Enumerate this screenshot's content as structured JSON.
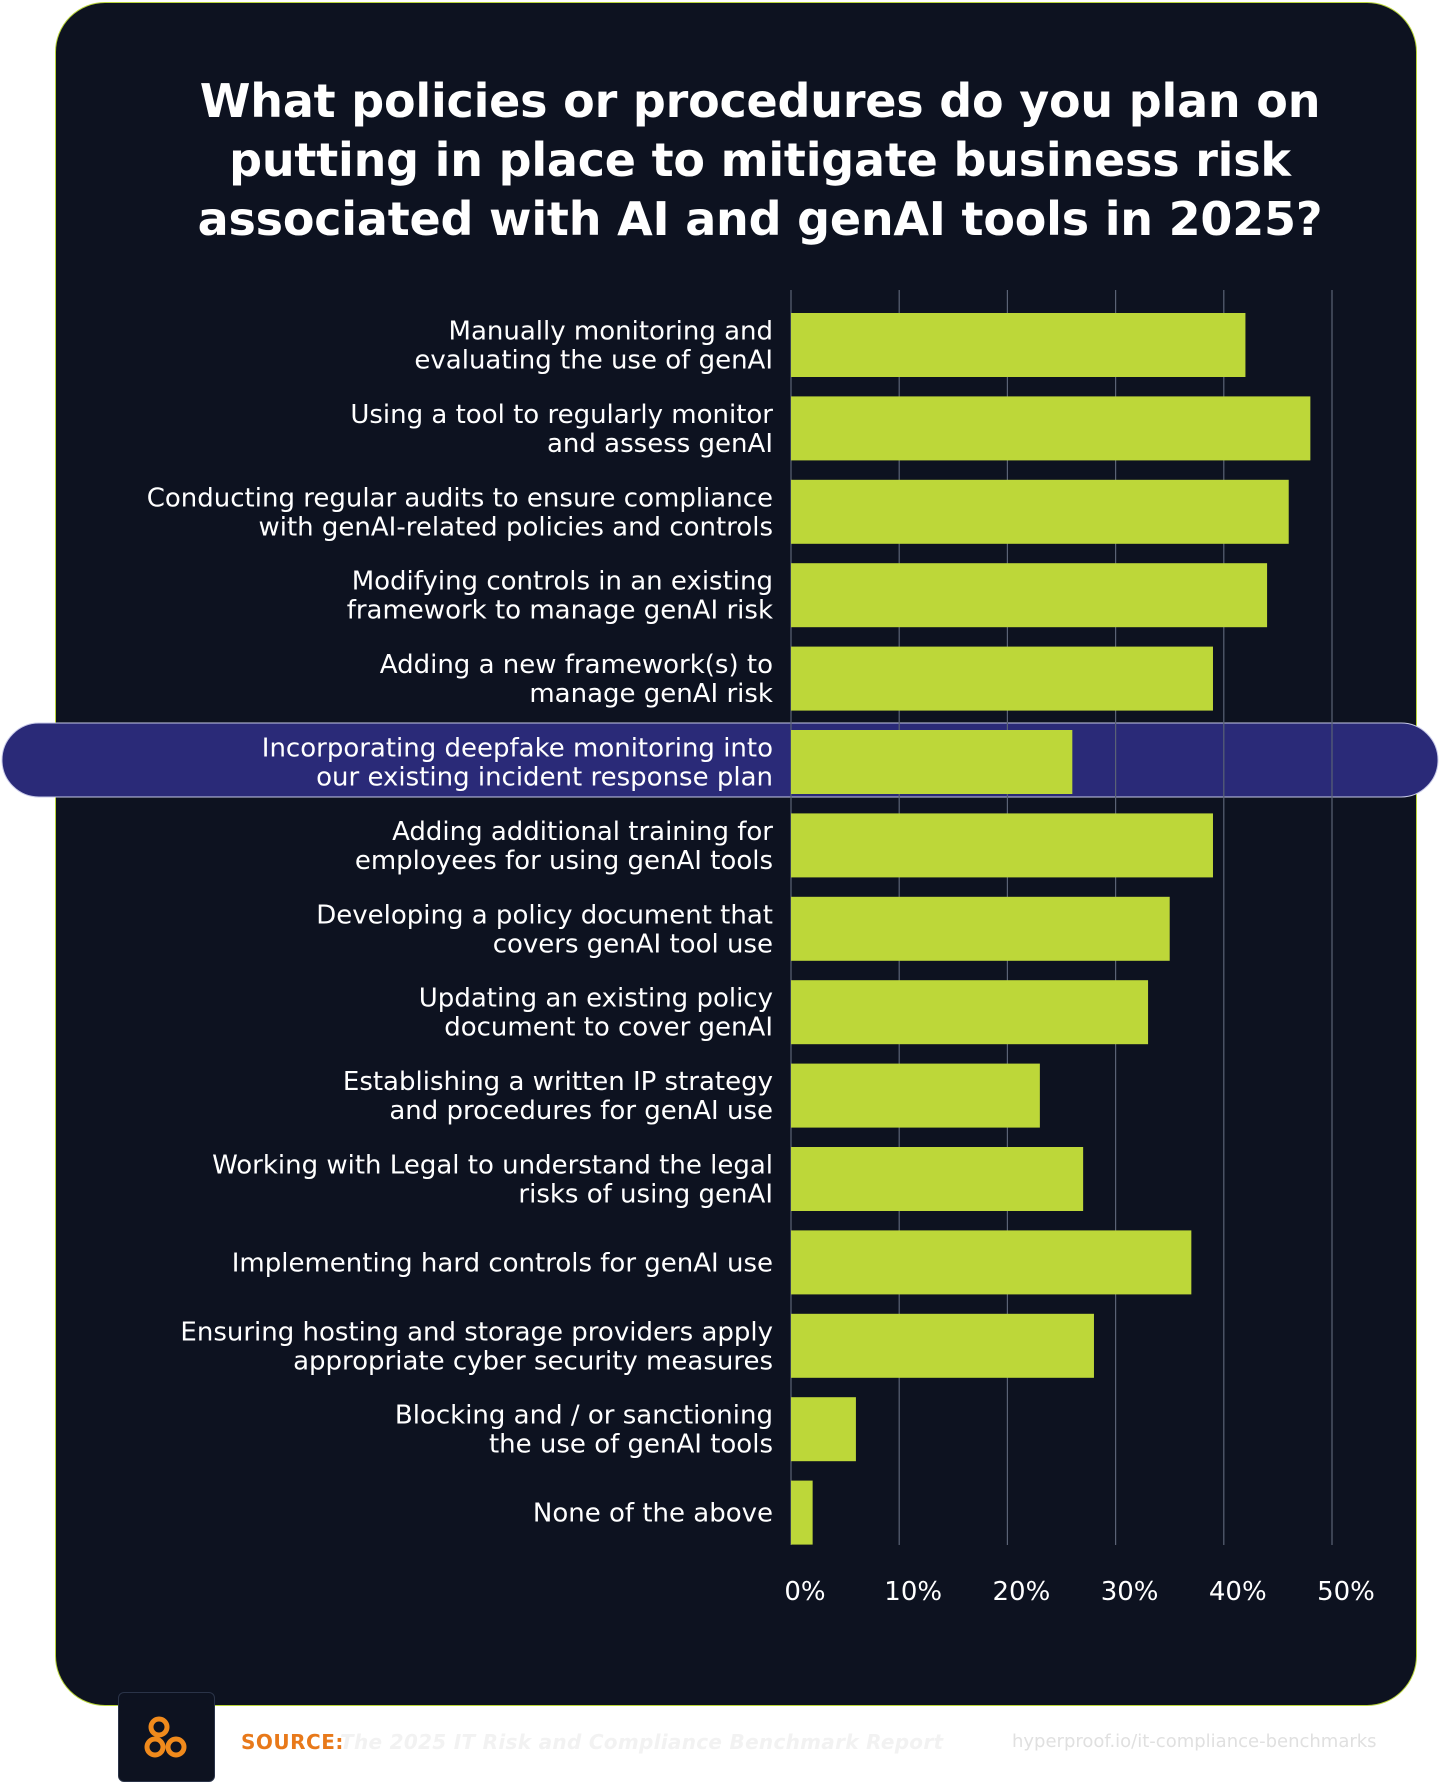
{
  "title": "What policies or procedures do you plan on putting in place to mitigate business risk associated with AI and genAI tools in 2025?",
  "colors": {
    "background": "#0d1220",
    "bar": "#bdd739",
    "highlight_band": "#2a2a78",
    "gridline": "#5a6275",
    "source_accent": "#e8791a",
    "logo_orange": "#f08a1c"
  },
  "footer": {
    "logo_icon": "three-circles-logo-icon",
    "source_label": "SOURCE:",
    "source_text": "The 2025 IT Risk and Compliance Benchmark Report",
    "source_url": "hyperproof.io/it-compliance-benchmarks"
  },
  "chart_data": {
    "type": "bar",
    "orientation": "horizontal",
    "title": "What policies or procedures do you plan on putting in place to mitigate business risk associated with AI and genAI tools in 2025?",
    "xlabel": "",
    "ylabel": "",
    "xlim": [
      0,
      50
    ],
    "x_ticks": [
      "0%",
      "10%",
      "20%",
      "30%",
      "40%",
      "50%"
    ],
    "grid": "vertical gridlines",
    "highlighted_category_index": 5,
    "categories": [
      [
        "Manually monitoring and",
        "evaluating the use of genAI"
      ],
      [
        "Using a tool to regularly monitor",
        "and assess genAI"
      ],
      [
        "Conducting regular audits to ensure compliance",
        "with genAI-related policies and controls"
      ],
      [
        "Modifying controls in an existing",
        "framework to manage genAI risk"
      ],
      [
        "Adding a new framework(s) to",
        "manage genAI risk"
      ],
      [
        "Incorporating deepfake monitoring into",
        "our existing incident response plan"
      ],
      [
        "Adding additional training for",
        "employees for using genAI tools"
      ],
      [
        "Developing a policy document that",
        "covers genAI tool use"
      ],
      [
        "Updating an existing policy",
        "document to cover genAI"
      ],
      [
        "Establishing a written IP strategy",
        "and procedures for genAI use"
      ],
      [
        "Working with Legal to understand the legal",
        "risks of using genAI"
      ],
      [
        "Implementing hard controls for genAI use"
      ],
      [
        "Ensuring hosting and storage providers apply",
        "appropriate cyber security measures"
      ],
      [
        "Blocking and / or sanctioning",
        "the use of genAI tools"
      ],
      [
        "None of the above"
      ]
    ],
    "values": [
      42,
      48,
      46,
      44,
      39,
      26,
      39,
      35,
      33,
      23,
      27,
      37,
      28,
      6,
      2
    ]
  }
}
